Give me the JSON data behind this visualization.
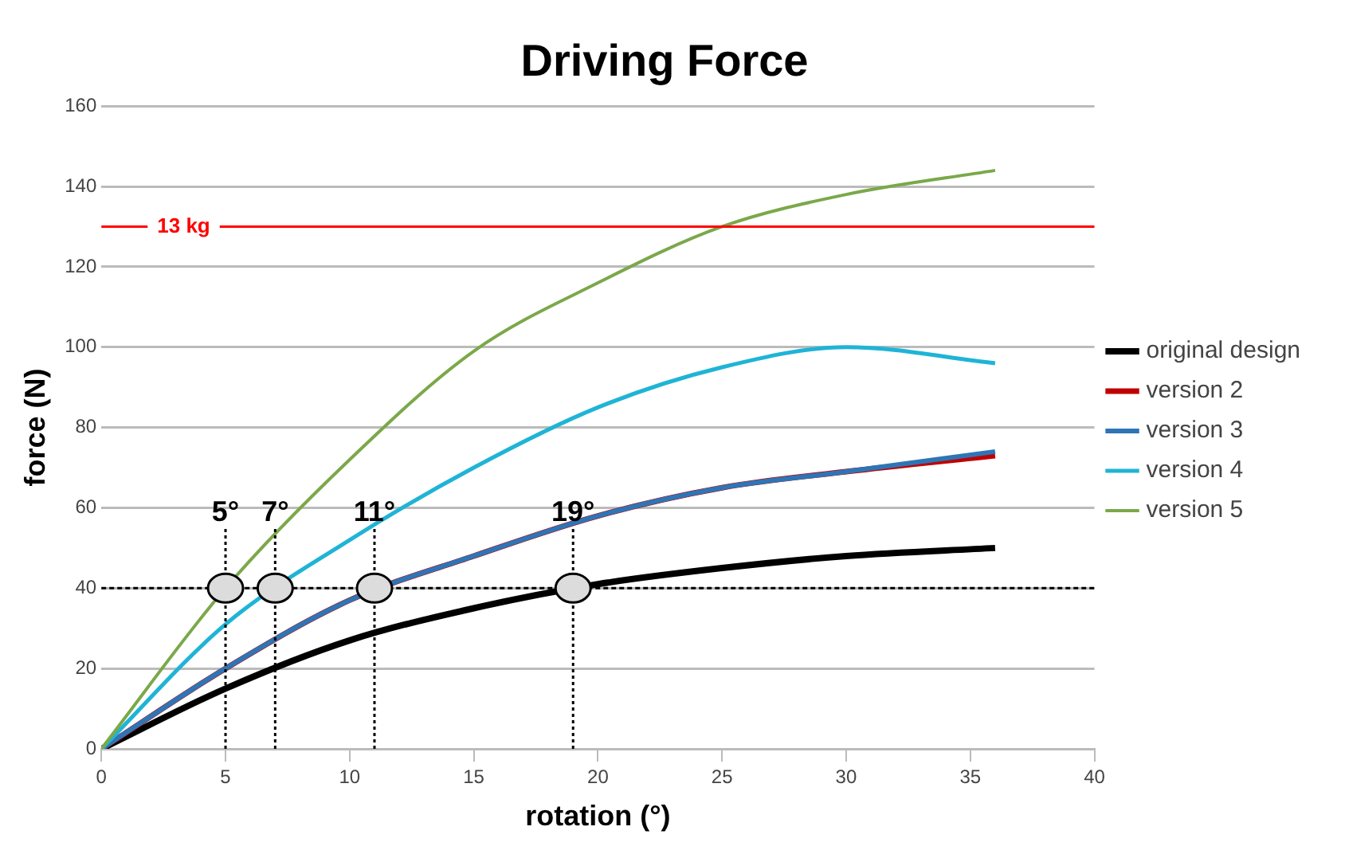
{
  "chart_data": {
    "type": "line",
    "title": "Driving Force",
    "xlabel": "rotation (°)",
    "ylabel": "force (N)",
    "x": [
      0,
      5,
      10,
      15,
      20,
      25,
      30,
      36
    ],
    "series": [
      {
        "name": "original design",
        "color": "#000000",
        "values": [
          0,
          15,
          27,
          35,
          41,
          45,
          48,
          50
        ]
      },
      {
        "name": "version 2",
        "color": "#c00000",
        "values": [
          0,
          20,
          37,
          48,
          58,
          65,
          69,
          73
        ]
      },
      {
        "name": "version 3",
        "color": "#2e75b6",
        "values": [
          0,
          20,
          37,
          48,
          58,
          65,
          69,
          74
        ]
      },
      {
        "name": "version 4",
        "color": "#1fb4d6",
        "values": [
          0,
          31,
          52,
          70,
          85,
          95,
          100,
          96
        ]
      },
      {
        "name": "version 5",
        "color": "#7ba84a",
        "values": [
          0,
          40,
          72,
          99,
          116,
          130,
          138,
          144
        ]
      }
    ],
    "xlim": [
      0,
      40
    ],
    "xticks": [
      0,
      5,
      10,
      15,
      20,
      25,
      30,
      35,
      40
    ],
    "ylim": [
      0,
      160
    ],
    "yticks": [
      0,
      20,
      40,
      60,
      80,
      100,
      120,
      140,
      160
    ],
    "ref_lines": [
      {
        "axis": "y",
        "value": 130,
        "label": "13 kg",
        "color": "#ff0000"
      },
      {
        "axis": "y",
        "value": 40,
        "color": "#000000",
        "line_style": "dotted"
      }
    ],
    "annotations": [
      {
        "text": "5°",
        "x": 5,
        "y": 40
      },
      {
        "text": "7°",
        "x": 7,
        "y": 40
      },
      {
        "text": "11°",
        "x": 11,
        "y": 40
      },
      {
        "text": "19°",
        "x": 19,
        "y": 40
      }
    ],
    "grid": "y",
    "legend": "right",
    "marker": "none",
    "line_style": "solid"
  }
}
